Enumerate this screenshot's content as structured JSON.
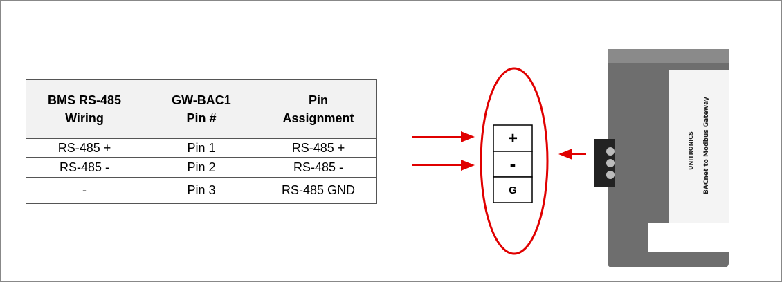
{
  "table": {
    "header": [
      [
        "BMS RS-485",
        "Wiring"
      ],
      [
        "GW-BAC1",
        "Pin #"
      ],
      [
        "Pin",
        "Assignment"
      ]
    ],
    "rows": [
      [
        "RS-485 +",
        "Pin 1",
        "RS-485 +"
      ],
      [
        "RS-485 -",
        "Pin 2",
        "RS-485 -"
      ],
      [
        "-",
        "Pin 3",
        "RS-485 GND"
      ]
    ]
  },
  "pins": [
    "+",
    "-",
    "G"
  ],
  "device": {
    "brand": "UNITRONICS",
    "label": "BACnet to Modbus Gateway"
  }
}
